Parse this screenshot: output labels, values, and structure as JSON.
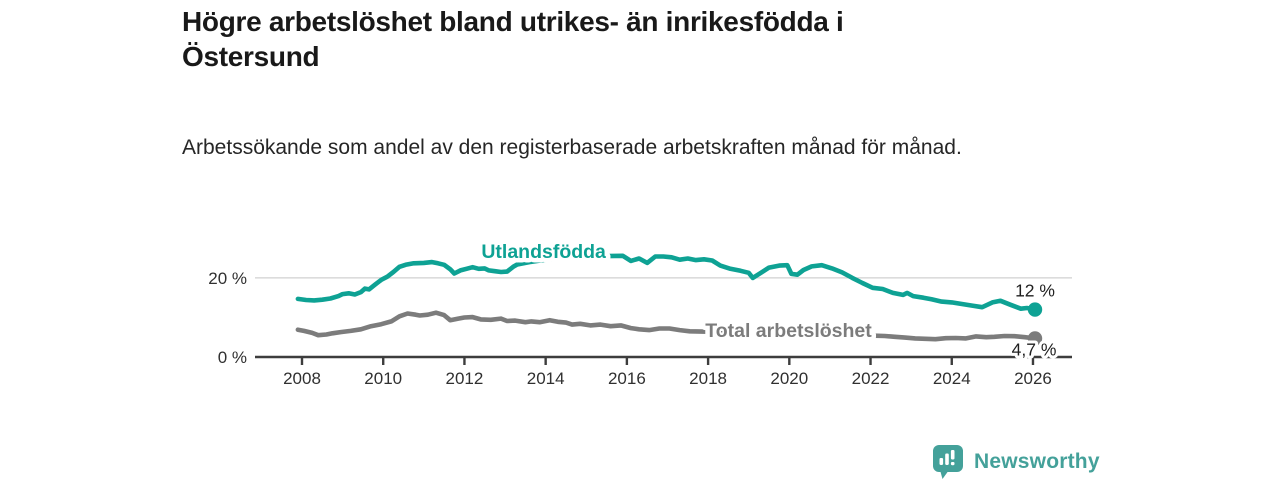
{
  "header": {
    "title": "Högre arbetslöshet bland utrikes- än inrikesfödda i Östersund",
    "subtitle": "Arbetssökande som andel av den registerbaserade arbetskraften månad för månad."
  },
  "branding": {
    "logo_text": "Newsworthy",
    "logo_icon": "bar-chart-speech-bubble",
    "logo_color": "#44a19a"
  },
  "colors": {
    "background": "#ffffff",
    "title_text": "#191919",
    "body_text": "#262626",
    "axis": "#3d3d3d",
    "gridline": "#d0d0d0",
    "tick_label": "#303030",
    "end_label": "#1f1f1f",
    "series_foreign_born": "#0ea294",
    "series_total": "#7c7c7c"
  },
  "chart_data": {
    "type": "line",
    "unit": "%",
    "grid": "single horizontal gridline at 20%",
    "legend_position": "inline labels on lines",
    "x_axis": {
      "tick_values": [
        2008,
        2010,
        2012,
        2014,
        2016,
        2018,
        2020,
        2022,
        2024,
        2026
      ],
      "range": [
        2007.0,
        2027.2
      ]
    },
    "y_axis": {
      "ticks": [
        {
          "value": 0,
          "label": "0 %"
        },
        {
          "value": 20,
          "label": "20 %"
        }
      ],
      "range": [
        0,
        33
      ]
    },
    "series": [
      {
        "name": "Utlandsfödda",
        "color": "#0ea294",
        "end_value": 12,
        "end_label": "12 %",
        "end_label_position": "above",
        "label_pos": {
          "x": 2013.95,
          "y": 26.8
        },
        "points": [
          [
            2007.9,
            14.7
          ],
          [
            2008.1,
            14.4
          ],
          [
            2008.3,
            14.3
          ],
          [
            2008.5,
            14.5
          ],
          [
            2008.7,
            14.8
          ],
          [
            2008.9,
            15.4
          ],
          [
            2009.0,
            15.9
          ],
          [
            2009.15,
            16.1
          ],
          [
            2009.3,
            15.8
          ],
          [
            2009.45,
            16.4
          ],
          [
            2009.55,
            17.3
          ],
          [
            2009.65,
            17.1
          ],
          [
            2009.8,
            18.3
          ],
          [
            2009.95,
            19.5
          ],
          [
            2010.1,
            20.3
          ],
          [
            2010.25,
            21.5
          ],
          [
            2010.4,
            22.8
          ],
          [
            2010.55,
            23.3
          ],
          [
            2010.75,
            23.7
          ],
          [
            2011.0,
            23.8
          ],
          [
            2011.2,
            24.0
          ],
          [
            2011.35,
            23.7
          ],
          [
            2011.5,
            23.3
          ],
          [
            2011.65,
            22.2
          ],
          [
            2011.75,
            21.1
          ],
          [
            2011.9,
            21.9
          ],
          [
            2012.05,
            22.3
          ],
          [
            2012.2,
            22.7
          ],
          [
            2012.35,
            22.3
          ],
          [
            2012.5,
            22.4
          ],
          [
            2012.6,
            21.9
          ],
          [
            2012.75,
            21.7
          ],
          [
            2012.9,
            21.5
          ],
          [
            2013.05,
            21.6
          ],
          [
            2013.2,
            22.8
          ],
          [
            2013.3,
            23.4
          ],
          [
            2013.6,
            24.0
          ],
          [
            2014.0,
            24.6
          ],
          [
            2014.5,
            25.0
          ],
          [
            2015.0,
            25.3
          ],
          [
            2015.5,
            25.5
          ],
          [
            2015.9,
            25.6
          ],
          [
            2016.1,
            24.3
          ],
          [
            2016.3,
            24.9
          ],
          [
            2016.5,
            23.8
          ],
          [
            2016.7,
            25.4
          ],
          [
            2016.9,
            25.4
          ],
          [
            2017.1,
            25.2
          ],
          [
            2017.3,
            24.6
          ],
          [
            2017.5,
            24.9
          ],
          [
            2017.7,
            24.5
          ],
          [
            2017.9,
            24.7
          ],
          [
            2018.1,
            24.4
          ],
          [
            2018.3,
            23.1
          ],
          [
            2018.55,
            22.3
          ],
          [
            2018.8,
            21.8
          ],
          [
            2019.0,
            21.3
          ],
          [
            2019.1,
            20.0
          ],
          [
            2019.3,
            21.3
          ],
          [
            2019.5,
            22.6
          ],
          [
            2019.75,
            23.1
          ],
          [
            2019.95,
            23.2
          ],
          [
            2020.05,
            21.0
          ],
          [
            2020.2,
            20.8
          ],
          [
            2020.35,
            22.0
          ],
          [
            2020.55,
            22.9
          ],
          [
            2020.8,
            23.2
          ],
          [
            2021.05,
            22.4
          ],
          [
            2021.3,
            21.4
          ],
          [
            2021.55,
            20.0
          ],
          [
            2021.8,
            18.7
          ],
          [
            2022.05,
            17.5
          ],
          [
            2022.3,
            17.2
          ],
          [
            2022.55,
            16.2
          ],
          [
            2022.8,
            15.7
          ],
          [
            2022.9,
            16.2
          ],
          [
            2023.05,
            15.4
          ],
          [
            2023.3,
            15.0
          ],
          [
            2023.5,
            14.6
          ],
          [
            2023.75,
            14.0
          ],
          [
            2024.0,
            13.8
          ],
          [
            2024.25,
            13.4
          ],
          [
            2024.5,
            13.0
          ],
          [
            2024.75,
            12.6
          ],
          [
            2025.0,
            13.8
          ],
          [
            2025.2,
            14.2
          ],
          [
            2025.45,
            13.2
          ],
          [
            2025.7,
            12.2
          ],
          [
            2025.85,
            12.4
          ],
          [
            2026.05,
            12.0
          ]
        ]
      },
      {
        "name": "Total arbetslöshet",
        "color": "#7c7c7c",
        "end_value": 4.7,
        "end_label": "4,7 %",
        "end_label_position": "below",
        "label_pos": {
          "x": 2019.98,
          "y": 6.8
        },
        "points": [
          [
            2007.9,
            6.9
          ],
          [
            2008.05,
            6.6
          ],
          [
            2008.25,
            6.1
          ],
          [
            2008.4,
            5.5
          ],
          [
            2008.6,
            5.7
          ],
          [
            2008.75,
            6.0
          ],
          [
            2008.95,
            6.3
          ],
          [
            2009.2,
            6.6
          ],
          [
            2009.45,
            7.0
          ],
          [
            2009.7,
            7.8
          ],
          [
            2009.95,
            8.3
          ],
          [
            2010.2,
            9.0
          ],
          [
            2010.4,
            10.3
          ],
          [
            2010.6,
            11.0
          ],
          [
            2010.8,
            10.7
          ],
          [
            2010.9,
            10.5
          ],
          [
            2011.1,
            10.7
          ],
          [
            2011.3,
            11.2
          ],
          [
            2011.5,
            10.6
          ],
          [
            2011.65,
            9.3
          ],
          [
            2011.85,
            9.7
          ],
          [
            2012.0,
            10.0
          ],
          [
            2012.2,
            10.1
          ],
          [
            2012.4,
            9.5
          ],
          [
            2012.65,
            9.4
          ],
          [
            2012.9,
            9.7
          ],
          [
            2013.05,
            9.1
          ],
          [
            2013.25,
            9.2
          ],
          [
            2013.5,
            8.8
          ],
          [
            2013.65,
            9.0
          ],
          [
            2013.85,
            8.8
          ],
          [
            2014.1,
            9.3
          ],
          [
            2014.3,
            8.9
          ],
          [
            2014.5,
            8.7
          ],
          [
            2014.65,
            8.2
          ],
          [
            2014.85,
            8.4
          ],
          [
            2015.1,
            8.0
          ],
          [
            2015.35,
            8.2
          ],
          [
            2015.6,
            7.8
          ],
          [
            2015.85,
            8.0
          ],
          [
            2016.1,
            7.3
          ],
          [
            2016.3,
            7.0
          ],
          [
            2016.55,
            6.8
          ],
          [
            2016.8,
            7.2
          ],
          [
            2017.05,
            7.2
          ],
          [
            2017.3,
            6.8
          ],
          [
            2017.55,
            6.5
          ],
          [
            2018.0,
            6.4
          ],
          [
            2018.5,
            6.3
          ],
          [
            2019.0,
            6.2
          ],
          [
            2019.5,
            6.0
          ],
          [
            2020.0,
            6.3
          ],
          [
            2020.5,
            6.1
          ],
          [
            2021.0,
            5.8
          ],
          [
            2021.5,
            5.6
          ],
          [
            2022.0,
            5.4
          ],
          [
            2022.35,
            5.3
          ],
          [
            2022.6,
            5.1
          ],
          [
            2022.85,
            4.9
          ],
          [
            2023.1,
            4.7
          ],
          [
            2023.35,
            4.6
          ],
          [
            2023.6,
            4.5
          ],
          [
            2023.85,
            4.75
          ],
          [
            2024.1,
            4.8
          ],
          [
            2024.35,
            4.7
          ],
          [
            2024.6,
            5.2
          ],
          [
            2024.85,
            5.0
          ],
          [
            2025.05,
            5.1
          ],
          [
            2025.3,
            5.3
          ],
          [
            2025.55,
            5.25
          ],
          [
            2025.8,
            5.0
          ],
          [
            2026.05,
            4.7
          ]
        ]
      }
    ]
  }
}
